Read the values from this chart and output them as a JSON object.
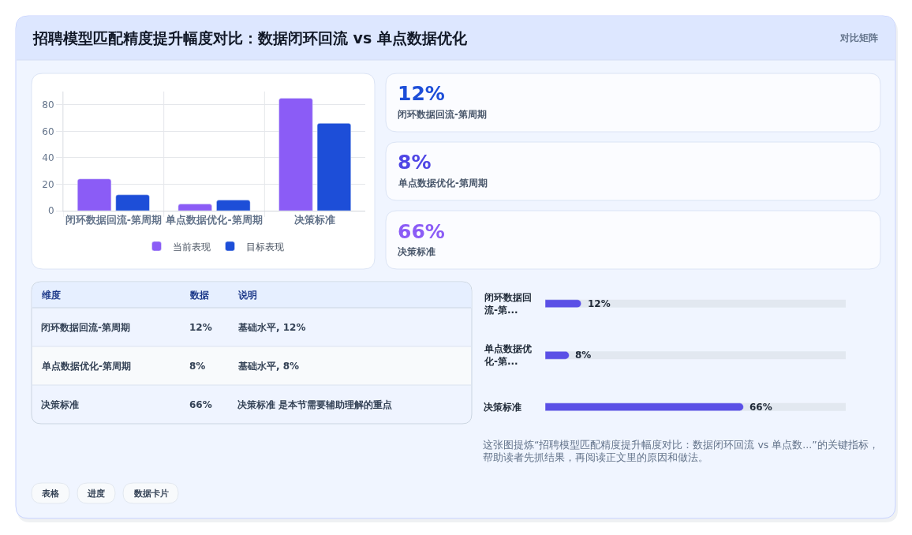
{
  "chart_data": [
    {
      "type": "bar",
      "title": "招聘模型匹配精度提升幅度对比：数据闭环回流 vs 单点数据优化",
      "annotations": [
        "对比矩阵"
      ],
      "categories": [
        "闭环数据回流-第周期",
        "单点数据优化-第周期",
        "决策标准"
      ],
      "series": [
        {
          "name": "当前表现",
          "color": "#8b5cf6",
          "values": [
            24,
            5,
            85
          ]
        },
        {
          "name": "目标表现",
          "color": "#1d4ed8",
          "values": [
            12,
            8,
            66
          ]
        }
      ],
      "ylim": [
        0,
        90
      ],
      "yticks": [
        0,
        20,
        40,
        60,
        80
      ],
      "grid": true,
      "legend": "bottom"
    },
    {
      "type": "other",
      "annotations": [
        "12%",
        "闭环数据回流-第周期",
        "8%",
        "单点数据优化-第周期",
        "66%",
        "决策标准"
      ]
    },
    {
      "type": "other",
      "categories": [
        "维度",
        "数据",
        "说明"
      ],
      "cell_labels": [
        [
          "闭环数据回流-第周期",
          "12%",
          "基础水平, 12%"
        ],
        [
          "单点数据优化-第周期",
          "8%",
          "基础水平, 8%"
        ],
        [
          "决策标准",
          "66%",
          "决策标准 是本节需要辅助理解的重点"
        ]
      ]
    },
    {
      "type": "bar",
      "orientation": "horizontal",
      "categories": [
        "闭环数据回流-第...",
        "单点数据优化-第...",
        "决策标准"
      ],
      "values": [
        12,
        8,
        66
      ],
      "value_labels": [
        "12%",
        "8%",
        "66%"
      ],
      "color": "#5b50e6",
      "xlim": [
        0,
        100
      ],
      "tick_labels": "y",
      "annotations": [
        "这张图提炼“招聘模型匹配精度提升幅度对比：数据闭环回流 vs 单点数...”的关键指标，帮助读者先抓结果，再阅读正文里的原因和做法。"
      ]
    },
    {
      "type": "other",
      "annotations": [
        "表格",
        "进度",
        "数据卡片"
      ]
    }
  ]
}
